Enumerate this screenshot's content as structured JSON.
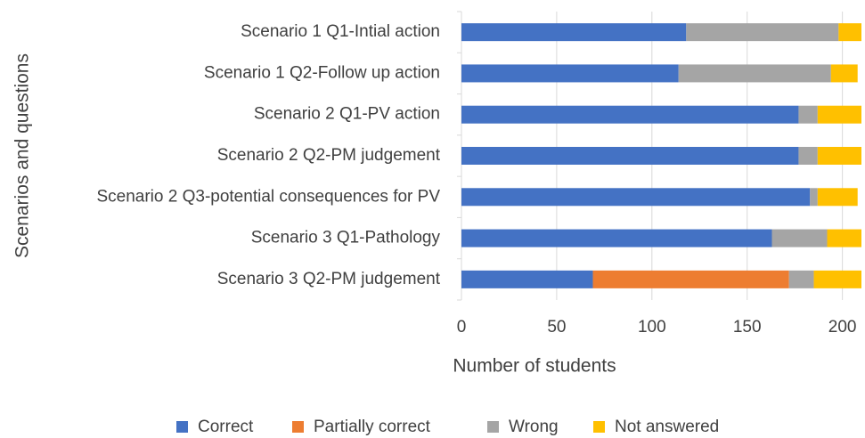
{
  "chart_data": {
    "type": "stacked-bar-horizontal",
    "categories": [
      "Scenario 1 Q1-Intial action",
      "Scenario 1 Q2-Follow up action",
      "Scenario 2 Q1-PV action",
      "Scenario 2 Q2-PM judgement",
      "Scenario 2 Q3-potential consequences for PV",
      "Scenario 3 Q1-Pathology",
      "Scenario 3 Q2-PM judgement"
    ],
    "series": [
      {
        "name": "Correct",
        "color": "#4472c4",
        "values": [
          118,
          114,
          177,
          177,
          183,
          163,
          69
        ]
      },
      {
        "name": "Partially correct",
        "color": "#ed7d31",
        "values": [
          0,
          0,
          0,
          0,
          0,
          0,
          103
        ]
      },
      {
        "name": "Wrong",
        "color": "#a5a5a5",
        "values": [
          80,
          80,
          10,
          10,
          4,
          29,
          13
        ]
      },
      {
        "name": "Not answered",
        "color": "#ffc000",
        "values": [
          12,
          14,
          23,
          23,
          21,
          18,
          25
        ]
      }
    ],
    "xlabel": "Number of students",
    "ylabel": "Scenarios and questions",
    "xlim": [
      0,
      210
    ],
    "xticks": [
      0,
      50,
      100,
      150,
      200
    ],
    "grid": true,
    "legend": "bottom"
  }
}
